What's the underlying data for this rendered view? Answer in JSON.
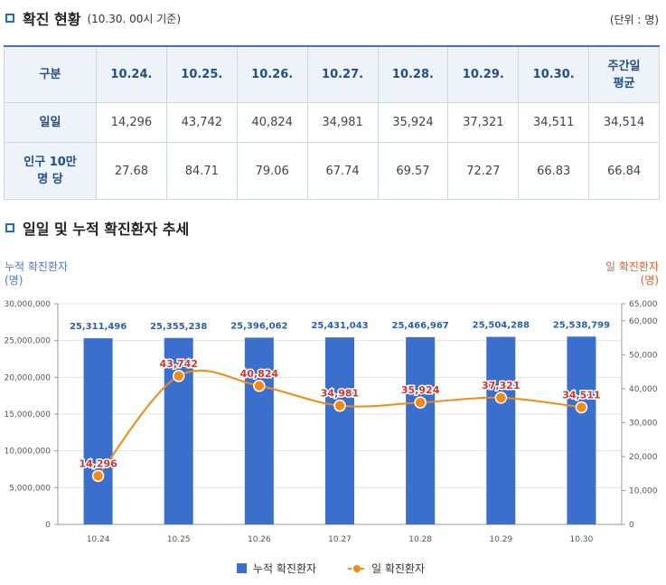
{
  "section1": {
    "title": "확진 현황",
    "subtitle": "(10.30. 00시 기준)",
    "unit": "(단위 : 명)"
  },
  "table": {
    "header": [
      "구분",
      "10.24.",
      "10.25.",
      "10.26.",
      "10.27.",
      "10.28.",
      "10.29.",
      "10.30.",
      "주간일 평균"
    ],
    "rows": [
      {
        "label": "일일",
        "values": [
          "14,296",
          "43,742",
          "40,824",
          "34,981",
          "35,924",
          "37,321",
          "34,511",
          "34,514"
        ]
      },
      {
        "label": "인구 10만 명 당",
        "values": [
          "27.68",
          "84.71",
          "79.06",
          "67.74",
          "69.57",
          "72.27",
          "66.83",
          "66.84"
        ]
      }
    ]
  },
  "section2": {
    "title": "일일 및 누적 확진환자 추세"
  },
  "chart_data": {
    "type": "bar+line",
    "categories": [
      "10.24",
      "10.25",
      "10.26",
      "10.27",
      "10.28",
      "10.29",
      "10.30"
    ],
    "series": [
      {
        "name": "누적 확진환자",
        "type": "bar",
        "axis": "left",
        "color": "#3a6fce",
        "values": [
          25311496,
          25355238,
          25396062,
          25431043,
          25466967,
          25504288,
          25538799
        ],
        "labels": [
          "25,311,496",
          "25,355,238",
          "25,396,062",
          "25,431,043",
          "25,466,967",
          "25,504,288",
          "25,538,799"
        ]
      },
      {
        "name": "일 확진환자",
        "type": "line",
        "axis": "right",
        "color": "#f28a18",
        "values": [
          14296,
          43742,
          40824,
          34981,
          35924,
          37321,
          34511
        ],
        "labels": [
          "14,296",
          "43,742",
          "40,824",
          "34,981",
          "35,924",
          "37,321",
          "34,511"
        ]
      }
    ],
    "left_axis": {
      "title_line1": "누적 확진환자",
      "title_line2": "(명)",
      "range": [
        0,
        30000000
      ],
      "ticks": [
        0,
        5000000,
        10000000,
        15000000,
        20000000,
        25000000,
        30000000
      ],
      "tick_labels": [
        "0",
        "5,000,000",
        "10,000,000",
        "15,000,000",
        "20,000,000",
        "25,000,000",
        "30,000,000"
      ]
    },
    "right_axis": {
      "title_line1": "일 확진환자",
      "title_line2": "(명)",
      "range": [
        0,
        65000
      ],
      "ticks": [
        0,
        10000,
        20000,
        30000,
        40000,
        50000,
        60000,
        65000
      ],
      "tick_labels": [
        "0",
        "10,000",
        "20,000",
        "30,000",
        "40,000",
        "50,000",
        "60,000",
        "65,000"
      ]
    },
    "legend": [
      "누적 확진환자",
      "일 확진환자"
    ]
  }
}
